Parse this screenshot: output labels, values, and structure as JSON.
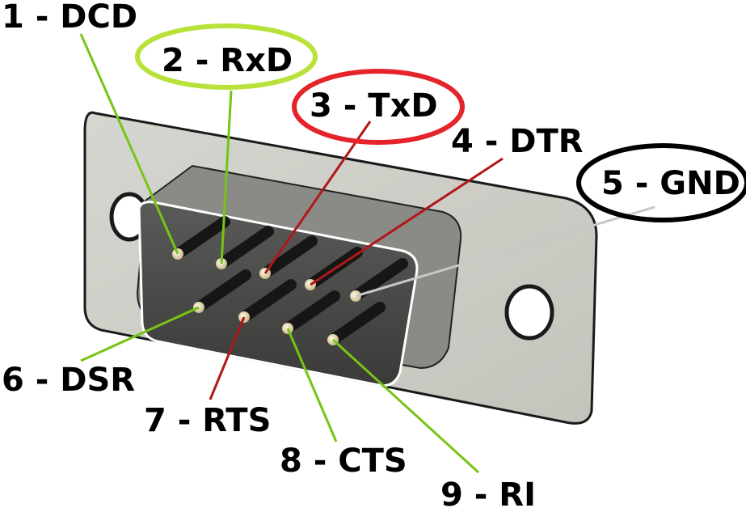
{
  "diagram": {
    "colors": {
      "green": "#77c416",
      "red": "#b01818",
      "gray": "#c8c8c8",
      "highlight_rxd": "#b8e23a",
      "highlight_txd": "#e4242a",
      "highlight_gnd": "#000000"
    },
    "pins": [
      {
        "number": 1,
        "label": "1 - DCD",
        "signal": "DCD",
        "line_color": "green",
        "highlight": false
      },
      {
        "number": 2,
        "label": "2 - RxD",
        "signal": "RxD",
        "line_color": "green",
        "highlight": true
      },
      {
        "number": 3,
        "label": "3 - TxD",
        "signal": "TxD",
        "line_color": "red",
        "highlight": true
      },
      {
        "number": 4,
        "label": "4 - DTR",
        "signal": "DTR",
        "line_color": "red",
        "highlight": false
      },
      {
        "number": 5,
        "label": "5 - GND",
        "signal": "GND",
        "line_color": "gray",
        "highlight": true
      },
      {
        "number": 6,
        "label": "6 - DSR",
        "signal": "DSR",
        "line_color": "green",
        "highlight": false
      },
      {
        "number": 7,
        "label": "7 - RTS",
        "signal": "RTS",
        "line_color": "red",
        "highlight": false
      },
      {
        "number": 8,
        "label": "8 - CTS",
        "signal": "CTS",
        "line_color": "green",
        "highlight": false
      },
      {
        "number": 9,
        "label": "9 - RI",
        "signal": "RI",
        "line_color": "green",
        "highlight": false
      }
    ]
  }
}
